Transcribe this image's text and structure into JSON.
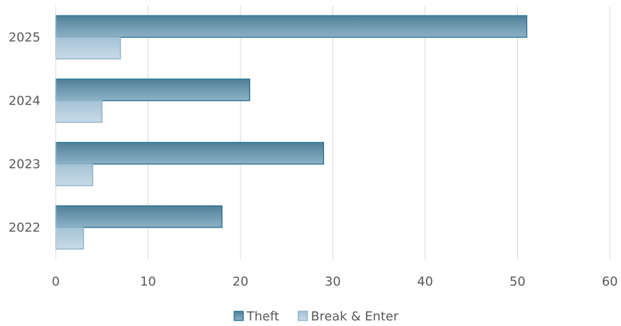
{
  "chart_data": {
    "type": "bar",
    "orientation": "horizontal",
    "categories": [
      "2022",
      "2023",
      "2024",
      "2025"
    ],
    "series": [
      {
        "name": "Theft",
        "values": [
          18,
          29,
          21,
          51
        ],
        "color": "#5f8fa8",
        "stroke": "#2d7693"
      },
      {
        "name": "Break & Enter",
        "values": [
          3,
          4,
          5,
          7
        ],
        "color": "#a9c7d9",
        "stroke": "#8fb3c9"
      }
    ],
    "xlim": [
      0,
      60
    ],
    "x_ticks": [
      "0",
      "10",
      "20",
      "30",
      "40",
      "50",
      "60"
    ],
    "grid": "vertical",
    "legend_position": "bottom",
    "title": "",
    "xlabel": "",
    "ylabel": ""
  }
}
